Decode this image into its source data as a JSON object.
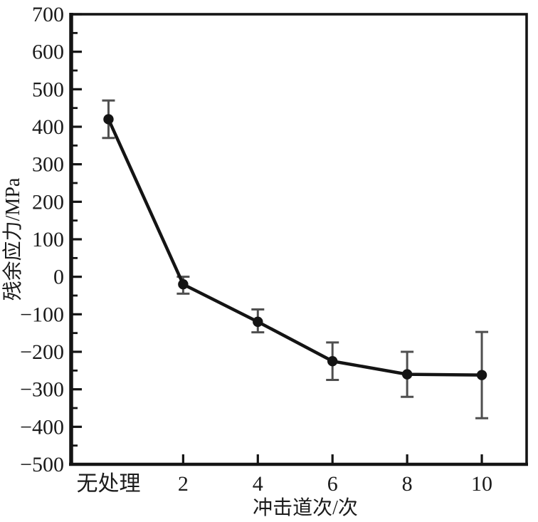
{
  "chart_data": {
    "type": "line",
    "title": "",
    "xlabel": "冲击道次/次",
    "ylabel": "残余应力/MPa",
    "categories": [
      "无处理",
      "2",
      "4",
      "6",
      "8",
      "10"
    ],
    "x": [
      0,
      2,
      4,
      6,
      8,
      10
    ],
    "series": [
      {
        "name": "残余应力",
        "values": [
          420,
          -20,
          -120,
          -225,
          -260,
          -262
        ],
        "error_plus": [
          50,
          20,
          33,
          50,
          60,
          115
        ],
        "error_minus": [
          50,
          25,
          28,
          50,
          60,
          115
        ]
      }
    ],
    "xlim": [
      -1.0,
      11.2
    ],
    "ylim": [
      -500,
      700
    ],
    "yticks_major": [
      700,
      600,
      500,
      400,
      300,
      200,
      100,
      0,
      -100,
      -200,
      -300,
      -400,
      -500
    ],
    "ytick_minor_step": 50,
    "xticks": [
      {
        "v": 0,
        "label": "无处理",
        "tick": false
      },
      {
        "v": 2,
        "label": "2",
        "tick": true
      },
      {
        "v": 4,
        "label": "4",
        "tick": true
      },
      {
        "v": 6,
        "label": "6",
        "tick": true
      },
      {
        "v": 8,
        "label": "8",
        "tick": true
      },
      {
        "v": 10,
        "label": "10",
        "tick": true
      }
    ],
    "grid": false,
    "legend": "none",
    "marker": "circle",
    "colors": {
      "line": "#141414",
      "marker": "#141414",
      "error_bar": "#4f4f4f",
      "axis": "#141414",
      "text": "#1b1b1b",
      "background": "#ffffff"
    }
  }
}
